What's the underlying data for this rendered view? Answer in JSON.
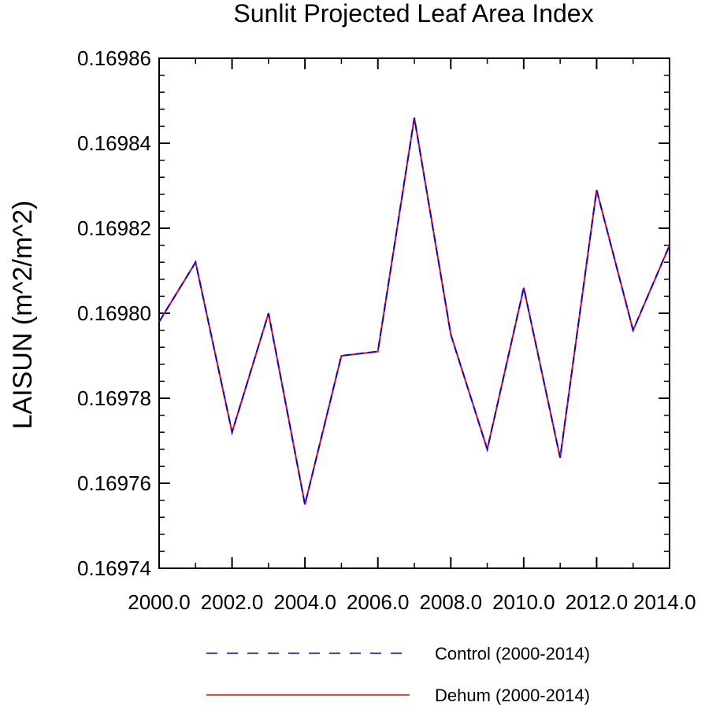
{
  "chart_data": {
    "type": "line",
    "title": "Sunlit Projected Leaf Area Index",
    "xlabel": "",
    "ylabel": "LAISUN  (m^2/m^2)",
    "xlim": [
      2000,
      2014
    ],
    "ylim": [
      0.16974,
      0.16986
    ],
    "x_ticks": [
      2000,
      2002,
      2004,
      2006,
      2008,
      2010,
      2012,
      2014
    ],
    "x_tick_labels": [
      "2000.0",
      "2002.0",
      "2004.0",
      "2006.0",
      "2008.0",
      "2010.0",
      "2012.0",
      "2014.0"
    ],
    "y_ticks": [
      0.16974,
      0.16976,
      0.16978,
      0.1698,
      0.16982,
      0.16984,
      0.16986
    ],
    "y_tick_labels": [
      "0.16974",
      "0.16976",
      "0.16978",
      "0.16980",
      "0.16982",
      "0.16984",
      "0.16986"
    ],
    "x": [
      2000,
      2001,
      2002,
      2003,
      2004,
      2005,
      2006,
      2007,
      2008,
      2009,
      2010,
      2011,
      2012,
      2013,
      2014
    ],
    "series": [
      {
        "name": "Control (2000-2014)",
        "color": "#0000ff",
        "style": "dashed",
        "values": [
          0.169798,
          0.169812,
          0.169772,
          0.1698,
          0.169755,
          0.16979,
          0.169791,
          0.169846,
          0.169795,
          0.169768,
          0.169806,
          0.169766,
          0.169829,
          0.169796,
          0.169816
        ]
      },
      {
        "name": "Dehum (2000-2014)",
        "color": "#ff0000",
        "style": "solid",
        "values": [
          0.169798,
          0.169812,
          0.169772,
          0.1698,
          0.169755,
          0.16979,
          0.169791,
          0.169846,
          0.169795,
          0.169768,
          0.169806,
          0.169766,
          0.169829,
          0.169796,
          0.169816
        ]
      }
    ],
    "legend": {
      "position": "bottom",
      "entries": [
        "Control (2000-2014)",
        "Dehum (2000-2014)"
      ]
    },
    "grid": false
  }
}
